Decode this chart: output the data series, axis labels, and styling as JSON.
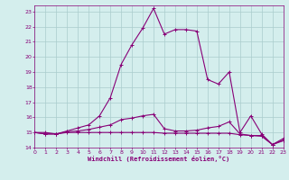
{
  "xlabel": "Windchill (Refroidissement éolien,°C)",
  "xlim": [
    0,
    23
  ],
  "ylim": [
    14,
    23.4
  ],
  "yticks": [
    14,
    15,
    16,
    17,
    18,
    19,
    20,
    21,
    22,
    23
  ],
  "xticks": [
    0,
    1,
    2,
    3,
    4,
    5,
    6,
    7,
    8,
    9,
    10,
    11,
    12,
    13,
    14,
    15,
    16,
    17,
    18,
    19,
    20,
    21,
    22,
    23
  ],
  "background_color": "#d4eeed",
  "line_color": "#880077",
  "grid_color": "#aacccc",
  "line1_x": [
    0,
    1,
    2,
    3,
    4,
    5,
    6,
    7,
    8,
    9,
    10,
    11,
    12,
    13,
    14,
    15,
    16,
    17,
    18,
    19,
    20,
    21,
    22,
    23
  ],
  "line1_y": [
    15.0,
    15.0,
    14.9,
    15.1,
    15.3,
    15.5,
    16.1,
    17.3,
    19.5,
    20.8,
    21.9,
    23.2,
    21.5,
    21.8,
    21.8,
    21.7,
    18.5,
    18.2,
    19.0,
    15.0,
    16.1,
    14.9,
    14.2,
    14.6
  ],
  "line2_x": [
    0,
    1,
    2,
    3,
    4,
    5,
    6,
    7,
    8,
    9,
    10,
    11,
    12,
    13,
    14,
    15,
    16,
    17,
    18,
    19,
    20,
    21,
    22,
    23
  ],
  "line2_y": [
    15.0,
    14.9,
    14.9,
    15.05,
    15.1,
    15.2,
    15.35,
    15.5,
    15.85,
    15.95,
    16.1,
    16.2,
    15.25,
    15.1,
    15.1,
    15.15,
    15.3,
    15.4,
    15.7,
    14.9,
    14.8,
    14.8,
    14.2,
    14.5
  ],
  "line3_x": [
    0,
    1,
    2,
    3,
    4,
    5,
    6,
    7,
    8,
    9,
    10,
    11,
    12,
    13,
    14,
    15,
    16,
    17,
    18,
    19,
    20,
    21,
    22,
    23
  ],
  "line3_y": [
    15.0,
    14.9,
    14.9,
    15.0,
    15.0,
    15.0,
    15.0,
    15.0,
    15.0,
    15.0,
    15.0,
    15.0,
    14.95,
    14.95,
    14.95,
    14.95,
    14.95,
    14.95,
    14.95,
    14.85,
    14.8,
    14.75,
    14.2,
    14.45
  ]
}
